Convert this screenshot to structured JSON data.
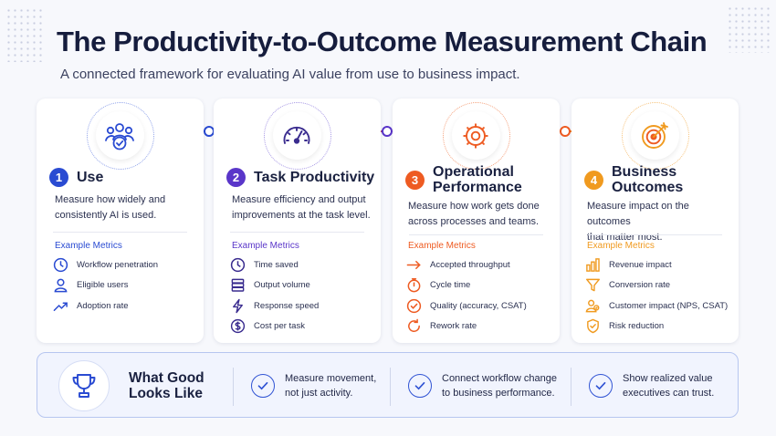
{
  "title": "The Productivity-to-Outcome Measurement Chain",
  "subtitle": "A connected framework for evaluating AI value from use to business impact.",
  "colors": {
    "blue": "#2a4bd2",
    "purple": "#5a36c9",
    "orange": "#ee5b22",
    "amber": "#f09a1f"
  },
  "stages": [
    {
      "number": "1",
      "title_line1": "Use",
      "title_line2": "",
      "desc_line1": "Measure how widely and",
      "desc_line2": "consistently AI is used.",
      "metrics_label": "Example Metrics",
      "metrics": [
        {
          "icon": "clock-icon",
          "label": "Workflow penetration"
        },
        {
          "icon": "user-icon",
          "label": "Eligible users"
        },
        {
          "icon": "trend-up-icon",
          "label": "Adoption rate"
        }
      ]
    },
    {
      "number": "2",
      "title_line1": "Task Productivity",
      "title_line2": "",
      "desc_line1": "Measure efficiency and output",
      "desc_line2": "improvements at the task level.",
      "metrics_label": "Example Metrics",
      "metrics": [
        {
          "icon": "clock-icon",
          "label": "Time saved"
        },
        {
          "icon": "stack-icon",
          "label": "Output volume"
        },
        {
          "icon": "bolt-icon",
          "label": "Response speed"
        },
        {
          "icon": "dollar-icon",
          "label": "Cost per task"
        }
      ]
    },
    {
      "number": "3",
      "title_line1": "Operational",
      "title_line2": "Performance",
      "desc_line1": "Measure how work gets done",
      "desc_line2": "across processes and teams.",
      "metrics_label": "Example Metrics",
      "metrics": [
        {
          "icon": "arrow-right-icon",
          "label": "Accepted throughput"
        },
        {
          "icon": "stopwatch-icon",
          "label": "Cycle time"
        },
        {
          "icon": "check-circle-icon",
          "label": "Quality (accuracy, CSAT)"
        },
        {
          "icon": "refresh-icon",
          "label": "Rework rate"
        }
      ]
    },
    {
      "number": "4",
      "title_line1": "Business",
      "title_line2": "Outcomes",
      "desc_line1": "Measure impact on the outcomes",
      "desc_line2": "that matter most.",
      "metrics_label": "Example Metrics",
      "metrics": [
        {
          "icon": "bar-chart-icon",
          "label": "Revenue impact"
        },
        {
          "icon": "funnel-icon",
          "label": "Conversion rate"
        },
        {
          "icon": "people-icon",
          "label": "Customer impact (NPS, CSAT)"
        },
        {
          "icon": "shield-check-icon",
          "label": "Risk reduction"
        }
      ]
    }
  ],
  "summary": {
    "heading_line1": "What Good",
    "heading_line2": "Looks Like",
    "points": [
      {
        "line1": "Measure movement,",
        "line2": "not just activity."
      },
      {
        "line1": "Connect workflow change",
        "line2": "to business performance."
      },
      {
        "line1": "Show realized value",
        "line2": "executives can trust."
      }
    ]
  }
}
